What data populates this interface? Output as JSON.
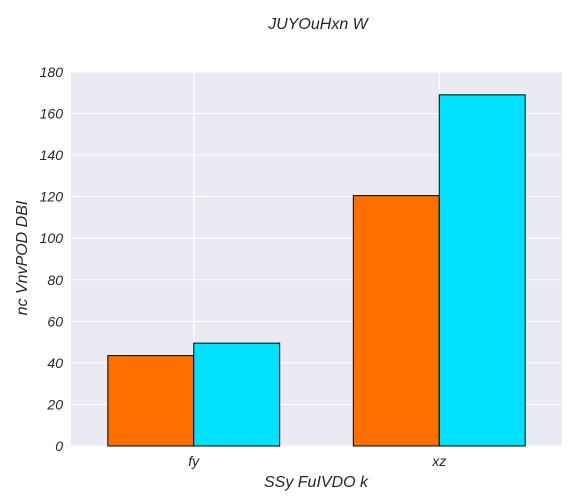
{
  "chart_data": {
    "type": "bar",
    "title": "JUYOuHxn  W",
    "xlabel": "SSy  FuIVDO k",
    "ylabel": "nc VnvPOD DBI",
    "categories": [
      "fy",
      "xz"
    ],
    "series": [
      {
        "values": [
          43.5,
          120.5
        ],
        "color": "#ff6f00"
      },
      {
        "values": [
          49.5,
          169.0
        ],
        "color": "#00e1ff"
      }
    ],
    "ylim": [
      0,
      180
    ],
    "yticks": [
      0,
      20,
      40,
      60,
      80,
      100,
      120,
      140,
      160,
      180
    ],
    "grid": true,
    "background": "#eaeaf2",
    "grid_color": "#ffffff",
    "edge_color": "#000000"
  }
}
